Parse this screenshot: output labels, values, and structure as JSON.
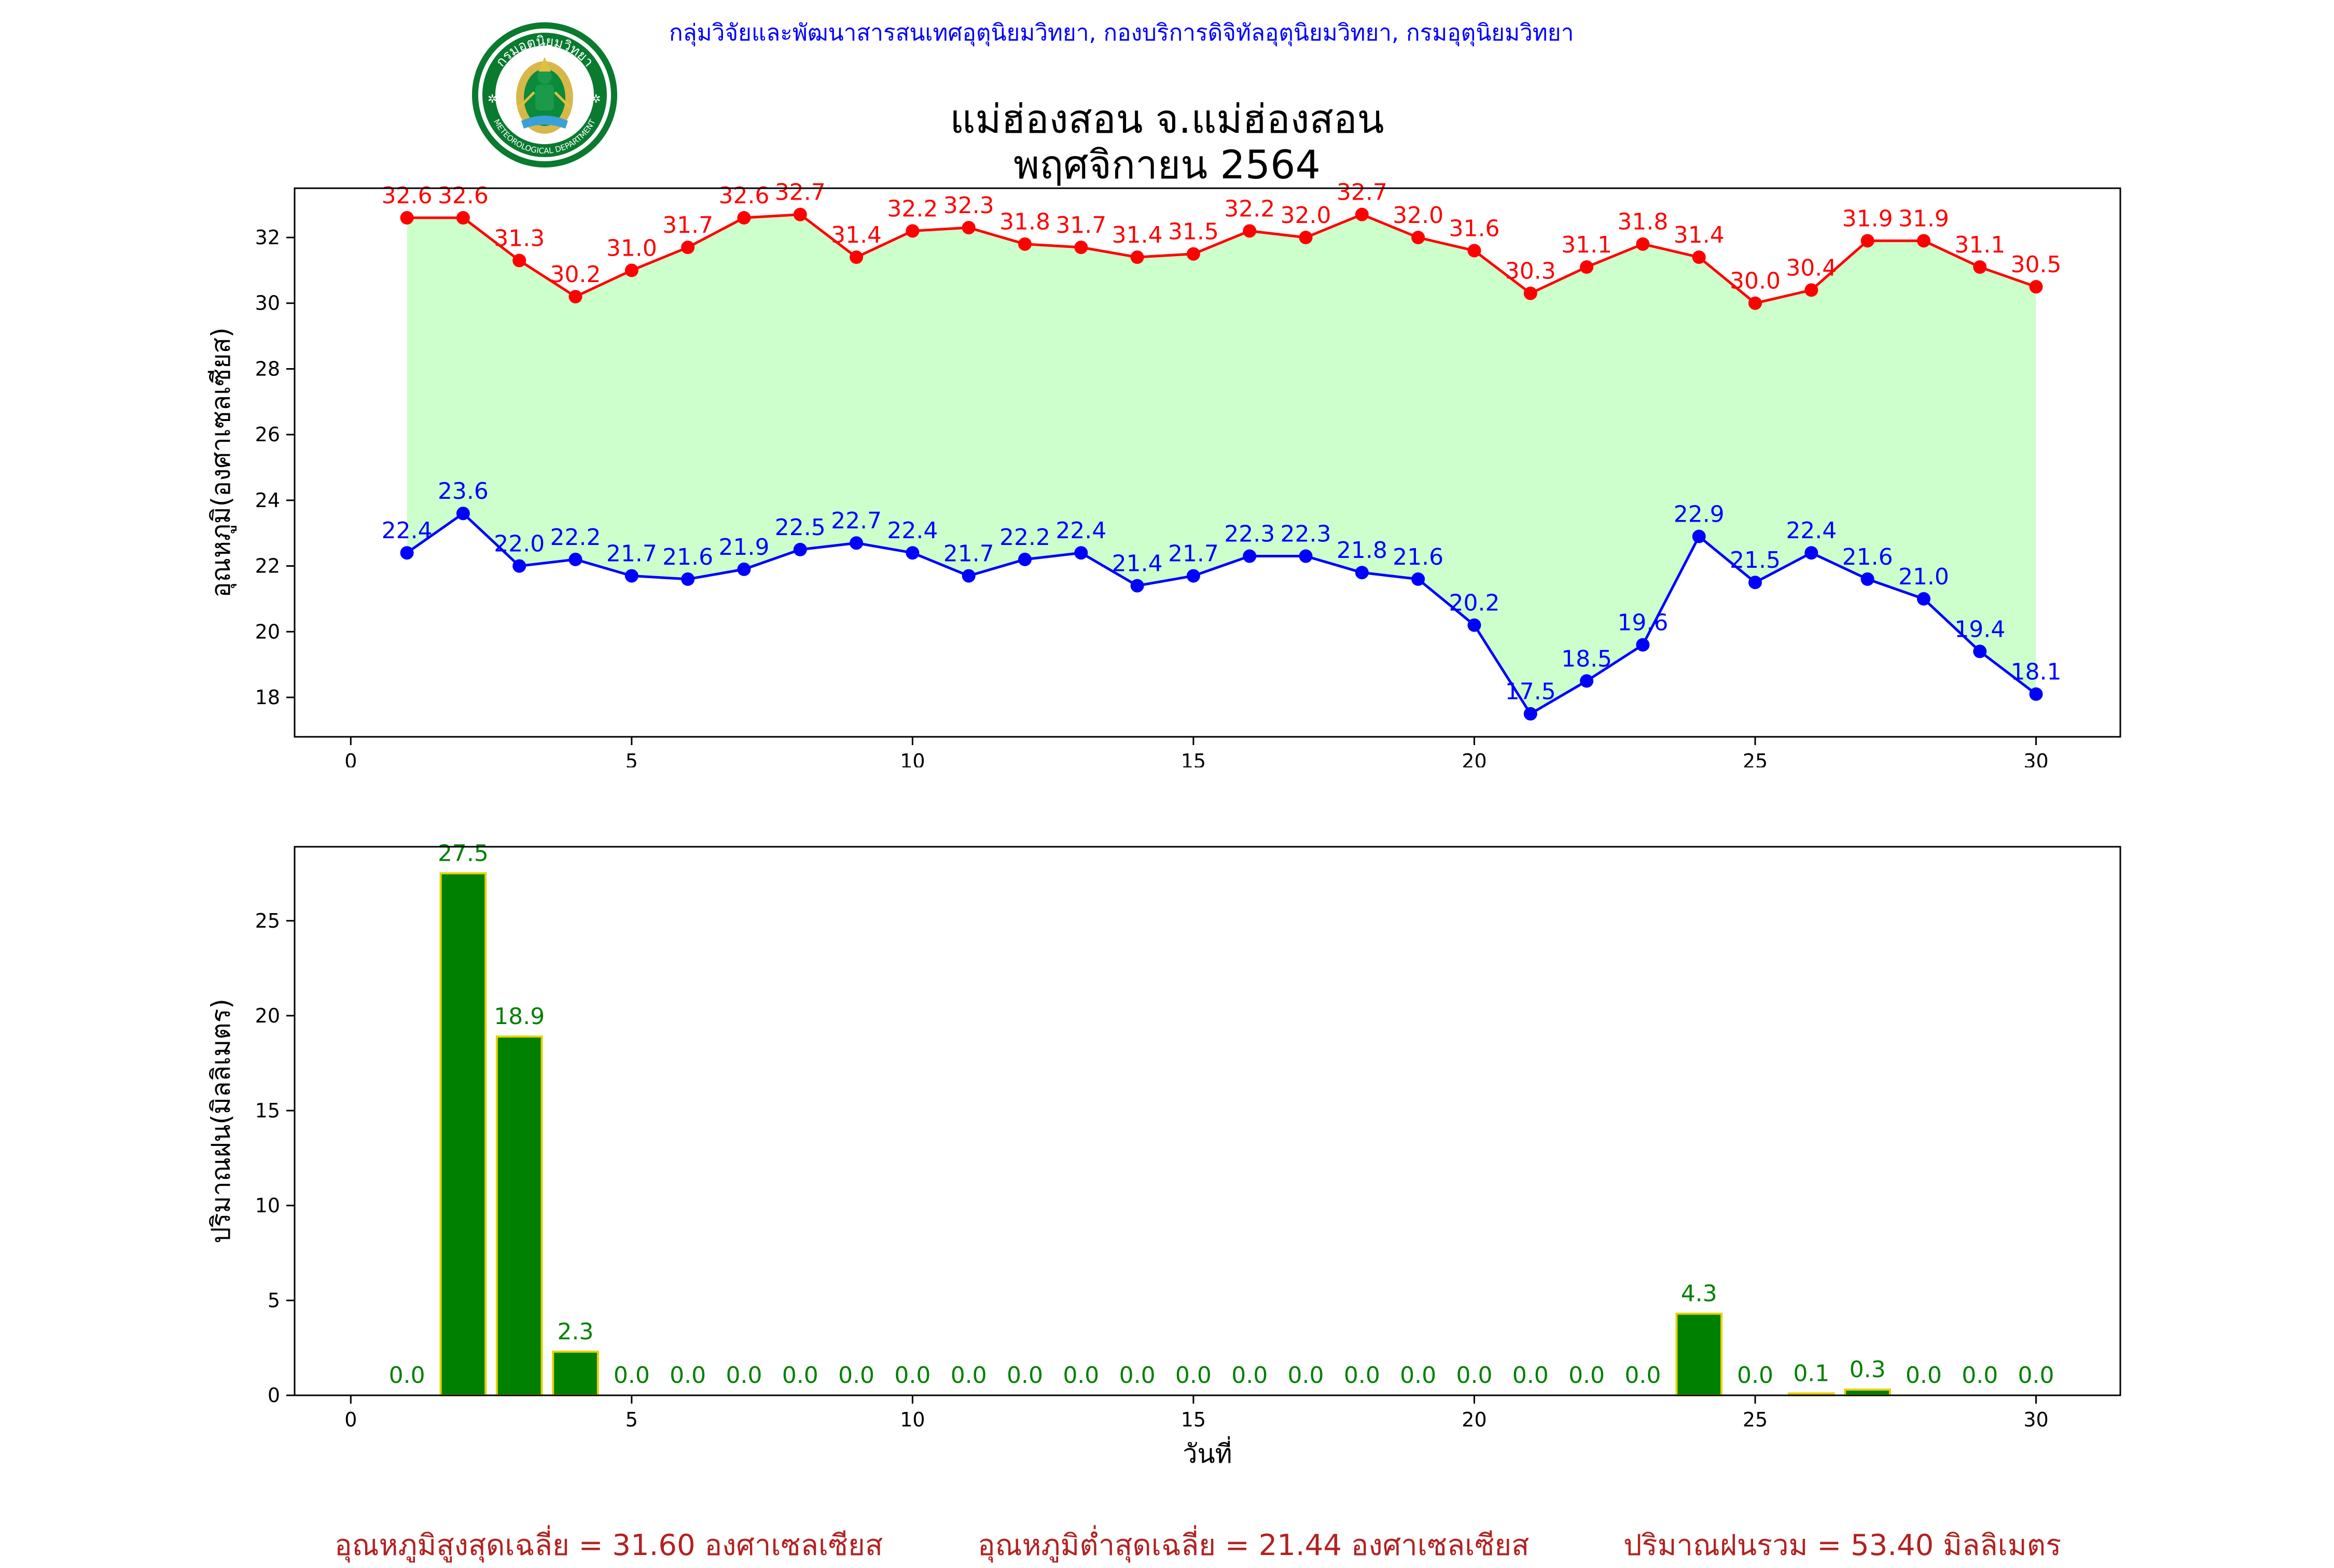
{
  "header": {
    "agency": "กลุ่มวิจัยและพัฒนาสารสนเทศอุตุนิยมวิทยา, กองบริการดิจิทัลอุตุนิยมวิทยา, กรมอุตุนิยมวิทยา",
    "logo_text_top": "กรมอุตุนิยมวิทยา",
    "logo_text_bottom": "METEOROLOGICAL DEPARTMENT"
  },
  "title": {
    "line1": "แม่ฮ่องสอน จ.แม่ฮ่องสอน",
    "line2": "พฤศจิกายน 2564"
  },
  "chart_data": [
    {
      "type": "line",
      "ylabel": "อุณหภูมิ(องศาเซลเซียส)",
      "xlabel": "",
      "xlim": [
        -1,
        31.5
      ],
      "ylim": [
        16.8,
        33.5
      ],
      "xticks": [
        0,
        5,
        10,
        15,
        20,
        25,
        30
      ],
      "yticks": [
        18,
        20,
        22,
        24,
        26,
        28,
        30,
        32
      ],
      "x": [
        1,
        2,
        3,
        4,
        5,
        6,
        7,
        8,
        9,
        10,
        11,
        12,
        13,
        14,
        15,
        16,
        17,
        18,
        19,
        20,
        21,
        22,
        23,
        24,
        25,
        26,
        27,
        28,
        29,
        30
      ],
      "fill_between": {
        "color": "#ccffcc"
      },
      "series": [
        {
          "color": "#ff0000",
          "values": [
            32.6,
            32.6,
            31.3,
            30.2,
            31.0,
            31.7,
            32.6,
            32.7,
            31.4,
            32.2,
            32.3,
            31.8,
            31.7,
            31.4,
            31.5,
            32.2,
            32.0,
            32.7,
            32.0,
            31.6,
            30.3,
            31.1,
            31.8,
            31.4,
            30.0,
            30.4,
            31.9,
            31.9,
            31.1,
            30.5
          ],
          "labels": [
            "32.6",
            "32.6",
            "31.3",
            "30.2",
            "31.0",
            "31.7",
            "32.6",
            "32.7",
            "31.4",
            "32.2",
            "32.3",
            "31.8",
            "31.7",
            "31.4",
            "31.5",
            "32.2",
            "32.0",
            "32.7",
            "32.0",
            "31.6",
            "30.3",
            "31.1",
            "31.8",
            "31.4",
            "30.0",
            "30.4",
            "31.9",
            "31.9",
            "31.1",
            "30.5"
          ]
        },
        {
          "color": "#0000ff",
          "values": [
            22.4,
            23.6,
            22.0,
            22.2,
            21.7,
            21.6,
            21.9,
            22.5,
            22.7,
            22.4,
            21.7,
            22.2,
            22.4,
            21.4,
            21.7,
            22.3,
            22.3,
            21.8,
            21.6,
            20.2,
            17.5,
            18.5,
            19.6,
            22.9,
            21.5,
            22.4,
            21.6,
            21.0,
            19.4,
            18.1
          ],
          "labels": [
            "22.4",
            "23.6",
            "22.0",
            "22.2",
            "21.7",
            "21.6",
            "21.9",
            "22.5",
            "22.7",
            "22.4",
            "21.7",
            "22.2",
            "22.4",
            "21.4",
            "21.7",
            "22.3",
            "22.3",
            "21.8",
            "21.6",
            "20.2",
            "17.5",
            "18.5",
            "19.6",
            "22.9",
            "21.5",
            "22.4",
            "21.6",
            "21.0",
            "19.4",
            "18.1"
          ]
        }
      ]
    },
    {
      "type": "bar",
      "ylabel": "ปริมาณฝน(มิลลิเมตร)",
      "xlabel": "วันที่",
      "xlim": [
        -1,
        31.5
      ],
      "ylim": [
        0,
        28.9
      ],
      "xticks": [
        0,
        5,
        10,
        15,
        20,
        25,
        30
      ],
      "yticks": [
        0,
        5,
        10,
        15,
        20,
        25
      ],
      "bar_color": "#008000",
      "bar_edge": "#e6d200",
      "x": [
        1,
        2,
        3,
        4,
        5,
        6,
        7,
        8,
        9,
        10,
        11,
        12,
        13,
        14,
        15,
        16,
        17,
        18,
        19,
        20,
        21,
        22,
        23,
        24,
        25,
        26,
        27,
        28,
        29,
        30
      ],
      "values": [
        0.0,
        27.5,
        18.9,
        2.3,
        0.0,
        0.0,
        0.0,
        0.0,
        0.0,
        0.0,
        0.0,
        0.0,
        0.0,
        0.0,
        0.0,
        0.0,
        0.0,
        0.0,
        0.0,
        0.0,
        0.0,
        0.0,
        0.0,
        4.3,
        0.0,
        0.1,
        0.3,
        0.0,
        0.0,
        0.0
      ],
      "labels": [
        "0.0",
        "27.5",
        "18.9",
        "2.3",
        "0.0",
        "0.0",
        "0.0",
        "0.0",
        "0.0",
        "0.0",
        "0.0",
        "0.0",
        "0.0",
        "0.0",
        "0.0",
        "0.0",
        "0.0",
        "0.0",
        "0.0",
        "0.0",
        "0.0",
        "0.0",
        "0.0",
        "4.3",
        "0.0",
        "0.1",
        "0.3",
        "0.0",
        "0.0",
        "0.0"
      ],
      "label_color": "#008000"
    }
  ],
  "summary": {
    "max_avg": "อุณหภูมิสูงสุดเฉลี่ย = 31.60 องศาเซลเซียส",
    "min_avg": "อุณหภูมิต่ำสุดเฉลี่ย = 21.44 องศาเซลเซียส",
    "rain_total": "ปริมาณฝนรวม = 53.40 มิลลิเมตร"
  }
}
